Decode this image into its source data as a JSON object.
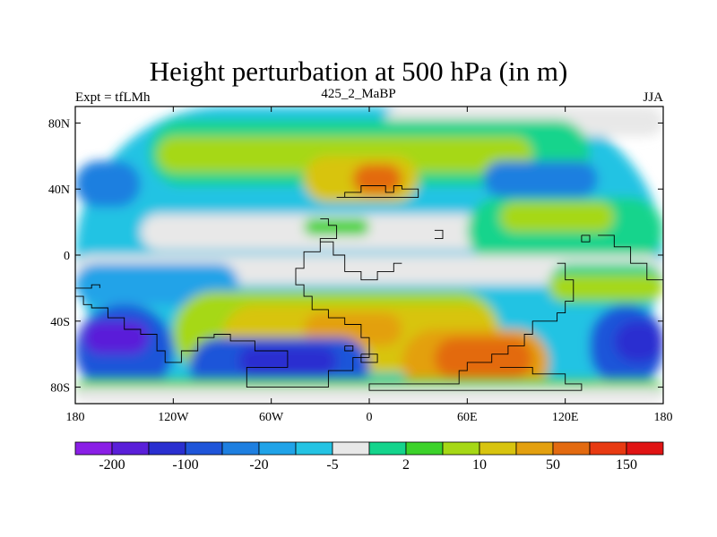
{
  "chart_data": {
    "type": "heatmap",
    "title": "Height perturbation at 500 hPa (in m)",
    "left_string": "Expt = tfLMh",
    "center_string": "425_2_MaBP",
    "right_string": "JJA",
    "x_ticks": [
      "180",
      "120W",
      "60W",
      "0",
      "60E",
      "120E",
      "180"
    ],
    "y_ticks": [
      "80N",
      "40N",
      "0",
      "40S",
      "80S"
    ],
    "xlim": [
      -180,
      180
    ],
    "ylim": [
      -90,
      90
    ],
    "colorbar": {
      "levels": [
        -200,
        -100,
        -20,
        -5,
        2,
        10,
        50,
        150
      ],
      "labels": [
        "-200",
        "-100",
        "-20",
        "-5",
        "2",
        "10",
        "50",
        "150"
      ],
      "colors": [
        "#8a1fe6",
        "#5a1fd9",
        "#2a2fd0",
        "#1f55d9",
        "#1e7fe0",
        "#20a3e8",
        "#24c3e3",
        "#e8e8e8",
        "#14d48c",
        "#3cd22a",
        "#a6d815",
        "#d8c40f",
        "#e3a00f",
        "#e36a10",
        "#e83a12",
        "#e01414"
      ]
    },
    "field_regions": [
      {
        "level_index": 6,
        "lon": -180,
        "lat": 90,
        "w": 360,
        "h": 180
      },
      {
        "level_index": 7,
        "lon": 10,
        "lat": 90,
        "w": 170,
        "h": 18
      },
      {
        "level_index": 8,
        "lon": -135,
        "lat": 82,
        "w": 270,
        "h": 40
      },
      {
        "level_index": 10,
        "lon": -130,
        "lat": 72,
        "w": 230,
        "h": 22
      },
      {
        "level_index": 11,
        "lon": -40,
        "lat": 60,
        "w": 70,
        "h": 28
      },
      {
        "level_index": 13,
        "lon": -10,
        "lat": 55,
        "w": 30,
        "h": 18
      },
      {
        "level_index": 4,
        "lon": -180,
        "lat": 57,
        "w": 40,
        "h": 28
      },
      {
        "level_index": 4,
        "lon": 70,
        "lat": 57,
        "w": 70,
        "h": 22
      },
      {
        "level_index": 7,
        "lon": -140,
        "lat": 25,
        "w": 280,
        "h": 22
      },
      {
        "level_index": 9,
        "lon": -40,
        "lat": 22,
        "w": 40,
        "h": 10
      },
      {
        "level_index": 8,
        "lon": 60,
        "lat": 35,
        "w": 120,
        "h": 40
      },
      {
        "level_index": 10,
        "lon": 80,
        "lat": 32,
        "w": 70,
        "h": 18
      },
      {
        "level_index": 7,
        "lon": -180,
        "lat": 0,
        "w": 360,
        "h": 18
      },
      {
        "level_index": 5,
        "lon": -180,
        "lat": -5,
        "w": 100,
        "h": 25
      },
      {
        "level_index": 8,
        "lon": 110,
        "lat": -5,
        "w": 70,
        "h": 25
      },
      {
        "level_index": 10,
        "lon": 110,
        "lat": -12,
        "w": 70,
        "h": 15
      },
      {
        "level_index": 10,
        "lon": -120,
        "lat": -22,
        "w": 200,
        "h": 50
      },
      {
        "level_index": 11,
        "lon": -90,
        "lat": -30,
        "w": 170,
        "h": 40
      },
      {
        "level_index": 12,
        "lon": -40,
        "lat": -35,
        "w": 60,
        "h": 20
      },
      {
        "level_index": 12,
        "lon": 20,
        "lat": -45,
        "w": 90,
        "h": 40
      },
      {
        "level_index": 13,
        "lon": 40,
        "lat": -50,
        "w": 60,
        "h": 25
      },
      {
        "level_index": 3,
        "lon": -180,
        "lat": -30,
        "w": 60,
        "h": 55
      },
      {
        "level_index": 1,
        "lon": -175,
        "lat": -40,
        "w": 40,
        "h": 20
      },
      {
        "level_index": 3,
        "lon": -110,
        "lat": -50,
        "w": 110,
        "h": 35
      },
      {
        "level_index": 2,
        "lon": -80,
        "lat": -55,
        "w": 60,
        "h": 18
      },
      {
        "level_index": 3,
        "lon": 135,
        "lat": -30,
        "w": 45,
        "h": 50
      },
      {
        "level_index": 2,
        "lon": 150,
        "lat": -40,
        "w": 30,
        "h": 25
      },
      {
        "level_index": 9,
        "lon": -180,
        "lat": -75,
        "w": 360,
        "h": 15
      },
      {
        "level_index": 7,
        "lon": -180,
        "lat": -80,
        "w": 360,
        "h": 10
      }
    ]
  }
}
